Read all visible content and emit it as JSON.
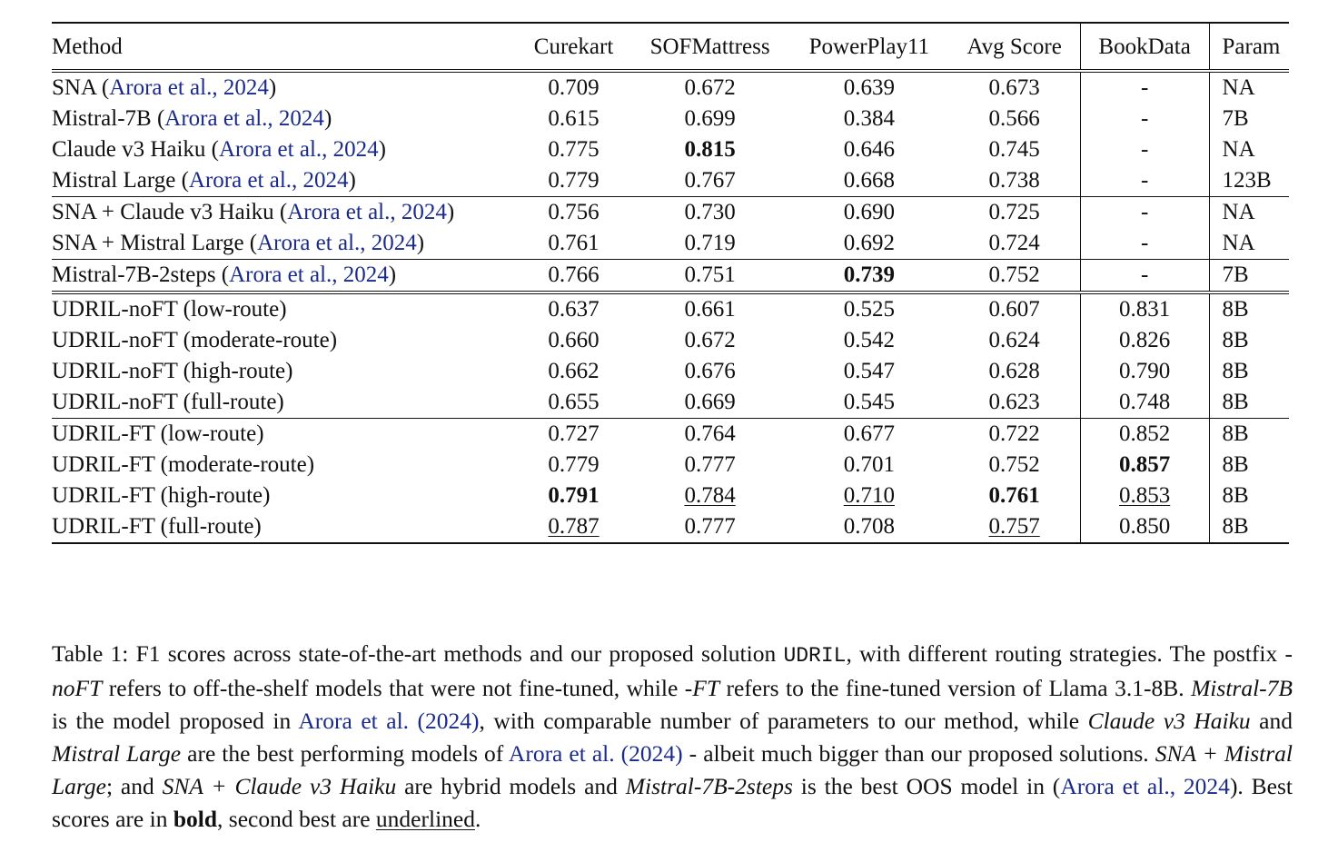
{
  "table": {
    "headers": {
      "method": "Method",
      "curekart": "Curekart",
      "sofmattress": "SOFMattress",
      "powerplay": "PowerPlay11",
      "avg": "Avg Score",
      "bookdata": "BookData",
      "param": "Param"
    },
    "groups": [
      {
        "rows": [
          {
            "method": "SNA",
            "cite": "Arora et al., 2024",
            "curekart": "0.709",
            "sofmattress": "0.672",
            "powerplay": "0.639",
            "avg": "0.673",
            "bookdata": "-",
            "param": "NA"
          },
          {
            "method": "Mistral-7B",
            "cite": "Arora et al., 2024",
            "curekart": "0.615",
            "sofmattress": "0.699",
            "powerplay": "0.384",
            "avg": "0.566",
            "bookdata": "-",
            "param": "7B"
          },
          {
            "method": "Claude v3 Haiku",
            "cite": "Arora et al., 2024",
            "curekart": "0.775",
            "sofmattress": "0.815",
            "powerplay": "0.646",
            "avg": "0.745",
            "bookdata": "-",
            "param": "NA",
            "bold": [
              "sofmattress"
            ]
          },
          {
            "method": "Mistral Large",
            "cite": "Arora et al., 2024",
            "curekart": "0.779",
            "sofmattress": "0.767",
            "powerplay": "0.668",
            "avg": "0.738",
            "bookdata": "-",
            "param": "123B"
          }
        ]
      },
      {
        "rows": [
          {
            "method": "SNA + Claude v3 Haiku",
            "cite": "Arora et al., 2024",
            "curekart": "0.756",
            "sofmattress": "0.730",
            "powerplay": "0.690",
            "avg": "0.725",
            "bookdata": "-",
            "param": "NA"
          },
          {
            "method": "SNA + Mistral Large",
            "cite": "Arora et al., 2024",
            "curekart": "0.761",
            "sofmattress": "0.719",
            "powerplay": "0.692",
            "avg": "0.724",
            "bookdata": "-",
            "param": "NA"
          }
        ]
      },
      {
        "rows": [
          {
            "method": "Mistral-7B-2steps",
            "cite": "Arora et al., 2024",
            "curekart": "0.766",
            "sofmattress": "0.751",
            "powerplay": "0.739",
            "avg": "0.752",
            "bookdata": "-",
            "param": "7B",
            "bold": [
              "powerplay"
            ]
          }
        ]
      },
      {
        "double": true,
        "rows": [
          {
            "method": "UDRIL-noFT (low-route)",
            "curekart": "0.637",
            "sofmattress": "0.661",
            "powerplay": "0.525",
            "avg": "0.607",
            "bookdata": "0.831",
            "param": "8B"
          },
          {
            "method": "UDRIL-noFT (moderate-route)",
            "curekart": "0.660",
            "sofmattress": "0.672",
            "powerplay": "0.542",
            "avg": "0.624",
            "bookdata": "0.826",
            "param": "8B"
          },
          {
            "method": "UDRIL-noFT (high-route)",
            "curekart": "0.662",
            "sofmattress": "0.676",
            "powerplay": "0.547",
            "avg": "0.628",
            "bookdata": "0.790",
            "param": "8B"
          },
          {
            "method": "UDRIL-noFT (full-route)",
            "curekart": "0.655",
            "sofmattress": "0.669",
            "powerplay": "0.545",
            "avg": "0.623",
            "bookdata": "0.748",
            "param": "8B"
          }
        ]
      },
      {
        "rows": [
          {
            "method": "UDRIL-FT (low-route)",
            "curekart": "0.727",
            "sofmattress": "0.764",
            "powerplay": "0.677",
            "avg": "0.722",
            "bookdata": "0.852",
            "param": "8B"
          },
          {
            "method": "UDRIL-FT (moderate-route)",
            "curekart": "0.779",
            "sofmattress": "0.777",
            "powerplay": "0.701",
            "avg": "0.752",
            "bookdata": "0.857",
            "param": "8B",
            "bold": [
              "bookdata"
            ]
          },
          {
            "method": "UDRIL-FT (high-route)",
            "curekart": "0.791",
            "sofmattress": "0.784",
            "powerplay": "0.710",
            "avg": "0.761",
            "bookdata": "0.853",
            "param": "8B",
            "bold": [
              "curekart",
              "avg"
            ],
            "underline": [
              "sofmattress",
              "powerplay",
              "bookdata"
            ]
          },
          {
            "method": "UDRIL-FT (full-route)",
            "curekart": "0.787",
            "sofmattress": "0.777",
            "powerplay": "0.708",
            "avg": "0.757",
            "bookdata": "0.850",
            "param": "8B",
            "underline": [
              "curekart",
              "avg"
            ]
          }
        ]
      }
    ]
  },
  "caption": {
    "s1": "Table 1: F1 scores across state-of-the-art methods and our proposed solution ",
    "udril": "UDRIL",
    "s2": ", with different routing strategies. The postfix ",
    "noft": "-noFT",
    "s3": " refers to off-the-shelf models that were not fine-tuned, while ",
    "ft": "-FT",
    "s4": " refers to the fine-tuned version of Llama 3.1-8B. ",
    "mistral7b": "Mistral-7B",
    "s5": " is the model proposed in ",
    "cite1": "Arora et al. (2024)",
    "s6": ", with comparable number of parameters to our method, while ",
    "claude": "Claude v3 Haiku",
    "s7": " and ",
    "mlarge": "Mistral Large",
    "s8": " are the best performing models of ",
    "cite2": "Arora et al. (2024)",
    "s9": " - albeit much bigger than our proposed solutions. ",
    "sna_ml": "SNA + Mistral Large",
    "s10": "; and ",
    "sna_cl": "SNA + Claude v3 Haiku",
    "s11": " are hybrid models and ",
    "m2steps": "Mistral-7B-2steps",
    "s12": " is the best OOS model in (",
    "cite3": "Arora et al., 2024",
    "s13": "). Best scores are in ",
    "bold_word": "bold",
    "s14": ", second best are ",
    "ul_word": "underlined",
    "s15": "."
  }
}
